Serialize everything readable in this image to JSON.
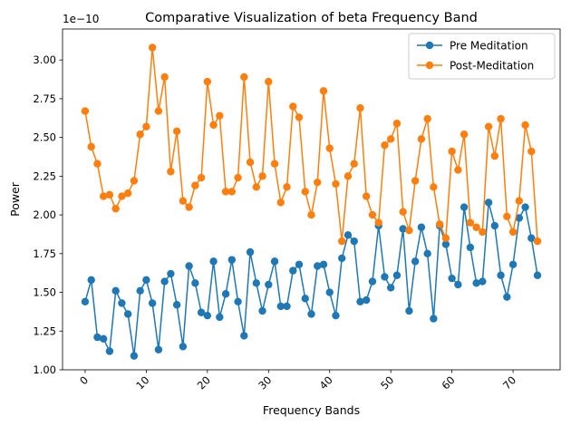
{
  "chart_data": {
    "type": "line",
    "title": "Comparative Visualization of beta Frequency Band",
    "xlabel": "Frequency Bands",
    "ylabel": "Power",
    "y_offset_label": "1e−10",
    "xlim": [
      -3.7,
      77.7
    ],
    "ylim": [
      1.0,
      3.2
    ],
    "x_ticks": [
      0,
      10,
      20,
      30,
      40,
      50,
      60,
      70
    ],
    "y_ticks": [
      1.0,
      1.25,
      1.5,
      1.75,
      2.0,
      2.25,
      2.5,
      2.75,
      3.0
    ],
    "y_tick_labels": [
      "1.00",
      "1.25",
      "1.50",
      "1.75",
      "2.00",
      "2.25",
      "2.50",
      "2.75",
      "3.00"
    ],
    "grid": false,
    "legend_position": "top-right",
    "series": [
      {
        "name": "Pre Meditation",
        "color": "#1f77b4",
        "values": [
          1.44,
          1.58,
          1.21,
          1.2,
          1.12,
          1.51,
          1.43,
          1.36,
          1.09,
          1.51,
          1.58,
          1.43,
          1.13,
          1.57,
          1.62,
          1.42,
          1.15,
          1.67,
          1.56,
          1.37,
          1.35,
          1.7,
          1.34,
          1.49,
          1.71,
          1.44,
          1.22,
          1.76,
          1.56,
          1.38,
          1.55,
          1.7,
          1.41,
          1.41,
          1.64,
          1.68,
          1.46,
          1.36,
          1.67,
          1.68,
          1.5,
          1.35,
          1.72,
          1.87,
          1.83,
          1.44,
          1.45,
          1.57,
          1.93,
          1.6,
          1.53,
          1.61,
          1.91,
          1.38,
          1.7,
          1.92,
          1.75,
          1.33,
          1.93,
          1.81,
          1.59,
          1.55,
          2.05,
          1.79,
          1.56,
          1.57,
          2.08,
          1.93,
          1.61,
          1.47,
          1.68,
          1.98,
          2.05,
          1.85,
          1.61
        ]
      },
      {
        "name": "Post-Meditation",
        "color": "#ff7f0e",
        "values": [
          2.67,
          2.44,
          2.33,
          2.12,
          2.13,
          2.04,
          2.12,
          2.14,
          2.22,
          2.52,
          2.57,
          3.08,
          2.67,
          2.89,
          2.28,
          2.54,
          2.09,
          2.05,
          2.19,
          2.24,
          2.86,
          2.58,
          2.64,
          2.15,
          2.15,
          2.24,
          2.89,
          2.34,
          2.18,
          2.25,
          2.86,
          2.33,
          2.08,
          2.18,
          2.7,
          2.63,
          2.15,
          2.0,
          2.21,
          2.8,
          2.43,
          2.2,
          1.83,
          2.25,
          2.33,
          2.69,
          2.12,
          2.0,
          1.95,
          2.45,
          2.49,
          2.59,
          2.02,
          1.9,
          2.22,
          2.49,
          2.62,
          2.18,
          1.94,
          1.85,
          2.41,
          2.29,
          2.52,
          1.95,
          1.92,
          1.89,
          2.57,
          2.38,
          2.62,
          1.99,
          1.89,
          2.09,
          2.58,
          2.41,
          1.83
        ]
      }
    ]
  }
}
